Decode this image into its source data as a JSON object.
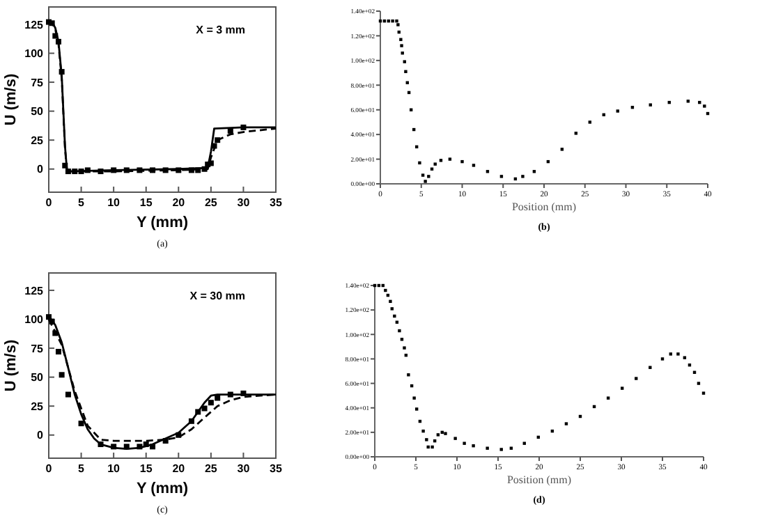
{
  "chart_data": [
    {
      "type": "line",
      "xlabel": "Y (mm)",
      "ylabel": "U (m/s)",
      "annotations": [
        "X = 3 mm",
        "(a)"
      ],
      "xlim": [
        0,
        35
      ],
      "xticks": [
        0,
        5,
        10,
        15,
        20,
        25,
        30,
        35
      ],
      "ylim": [
        -20,
        140
      ],
      "yticks": [
        0,
        25,
        50,
        75,
        100,
        125
      ],
      "grid": false,
      "series": [
        {
          "line_style": "solid",
          "color": "#000000",
          "x": [
            0,
            0.5,
            1,
            1.5,
            2,
            2.5,
            2.8,
            3,
            10,
            20,
            24.5,
            25,
            25.5,
            30,
            35
          ],
          "values": [
            128,
            127,
            122,
            110,
            80,
            20,
            -1,
            -2,
            -1,
            0,
            1,
            15,
            35,
            36,
            36
          ]
        },
        {
          "line_style": "dashed",
          "color": "#000000",
          "x": [
            0,
            0.5,
            1,
            1.5,
            2,
            2.5,
            2.8,
            3,
            10,
            20,
            24.5,
            25,
            26,
            28,
            30,
            35
          ],
          "values": [
            127,
            126,
            121,
            108,
            78,
            18,
            -1,
            -2,
            -2,
            -1,
            0,
            10,
            25,
            30,
            32,
            35
          ]
        },
        {
          "type": "scatter",
          "marker": "square",
          "color": "#000000",
          "x": [
            0,
            0.5,
            1,
            1.5,
            2,
            2.5,
            3,
            4,
            5,
            6,
            8,
            10,
            12,
            14,
            16,
            18,
            20,
            22,
            23,
            24,
            24.5,
            25,
            25.5,
            26,
            28,
            30
          ],
          "values": [
            127,
            126,
            115,
            110,
            84,
            3,
            -2,
            -2,
            -2,
            -1,
            -2,
            -1,
            -1,
            -1,
            -1,
            -1,
            -1,
            -1,
            -1,
            0,
            4,
            5,
            20,
            25,
            33,
            36
          ]
        }
      ]
    },
    {
      "type": "scatter",
      "xlabel": "Position (mm)",
      "annotations": [
        "(b)"
      ],
      "xlim": [
        0,
        40
      ],
      "xticks": [
        0,
        5,
        10,
        15,
        20,
        25,
        30,
        35,
        40
      ],
      "ylim": [
        0,
        140
      ],
      "yticks": [
        {
          "value": 0,
          "label": "0.00e+00"
        },
        {
          "value": 20,
          "label": "2.00e+01"
        },
        {
          "value": 40,
          "label": "4.00e+01"
        },
        {
          "value": 60,
          "label": "6.00e+01"
        },
        {
          "value": 80,
          "label": "8.00e+01"
        },
        {
          "value": 100,
          "label": "1.00e+02"
        },
        {
          "value": 120,
          "label": "1.20e+02"
        },
        {
          "value": 140,
          "label": "1.40e+02"
        }
      ],
      "grid": false,
      "series": [
        {
          "marker": "square",
          "color": "#000000",
          "x": [
            0,
            0.5,
            1,
            1.5,
            2,
            2.16,
            2.28,
            2.5,
            2.6,
            2.7,
            2.96,
            3.1,
            3.3,
            3.5,
            3.76,
            4.1,
            4.44,
            4.8,
            5.2,
            5.5,
            5.9,
            6.3,
            6.7,
            7.4,
            8.5,
            10,
            11.4,
            13.1,
            14.8,
            16.5,
            17.4,
            18.8,
            20.5,
            22.2,
            23.9,
            25.6,
            27.3,
            29,
            30.8,
            33,
            35.3,
            37.6,
            39,
            39.6,
            40
          ],
          "values": [
            132,
            132,
            132,
            132,
            132,
            129,
            123,
            117,
            112,
            106,
            99,
            91,
            82,
            74,
            60,
            44,
            30,
            17,
            7,
            2,
            6,
            12,
            16,
            19,
            20,
            18,
            15,
            10,
            6,
            4,
            6,
            10,
            18,
            28,
            41,
            50,
            56,
            59,
            62,
            64,
            66,
            67,
            66,
            63,
            57
          ]
        }
      ]
    },
    {
      "type": "line",
      "xlabel": "Y (mm)",
      "ylabel": "U (m/s)",
      "annotations": [
        "X = 30 mm",
        "(c)"
      ],
      "xlim": [
        0,
        35
      ],
      "xticks": [
        0,
        5,
        10,
        15,
        20,
        25,
        30,
        35
      ],
      "ylim": [
        -20,
        140
      ],
      "yticks": [
        0,
        25,
        50,
        75,
        100,
        125
      ],
      "grid": false,
      "series": [
        {
          "line_style": "solid",
          "color": "#000000",
          "x": [
            0,
            1,
            2,
            3,
            4,
            5,
            6,
            7,
            8,
            10,
            12,
            14,
            16,
            18,
            20,
            22,
            24,
            25,
            26,
            30,
            35
          ],
          "values": [
            103,
            95,
            80,
            58,
            35,
            18,
            5,
            -3,
            -8,
            -11,
            -12,
            -11,
            -8,
            -3,
            2,
            12,
            28,
            34,
            35,
            35,
            35
          ]
        },
        {
          "line_style": "dashed",
          "color": "#000000",
          "x": [
            0,
            2,
            4,
            6,
            8,
            10,
            15,
            18,
            20,
            22,
            24,
            26,
            28,
            30,
            35
          ],
          "values": [
            100,
            78,
            38,
            8,
            -4,
            -5,
            -5,
            -4,
            -2,
            5,
            15,
            25,
            30,
            33,
            35
          ]
        },
        {
          "type": "scatter",
          "marker": "square",
          "color": "#000000",
          "x": [
            0,
            0.5,
            1,
            1.5,
            2,
            3,
            5,
            8,
            10,
            12,
            14,
            15,
            16,
            18,
            20,
            22,
            23,
            24,
            25,
            26,
            28,
            30
          ],
          "values": [
            102,
            98,
            88,
            72,
            52,
            35,
            10,
            -8,
            -10,
            -10,
            -10,
            -8,
            -10,
            -5,
            0,
            12,
            20,
            23,
            28,
            32,
            35,
            36
          ]
        }
      ]
    },
    {
      "type": "scatter",
      "xlabel": "Position (mm)",
      "annotations": [
        "(d)"
      ],
      "xlim": [
        0,
        40
      ],
      "xticks": [
        0,
        5,
        10,
        15,
        20,
        25,
        30,
        35,
        40
      ],
      "ylim": [
        0,
        140
      ],
      "yticks": [
        {
          "value": 0,
          "label": "0.00e+00"
        },
        {
          "value": 20,
          "label": "2.00e+01"
        },
        {
          "value": 40,
          "label": "4.00e+01"
        },
        {
          "value": 60,
          "label": "6.00e+01"
        },
        {
          "value": 80,
          "label": "8.00e+01"
        },
        {
          "value": 100,
          "label": "1.00e+02"
        },
        {
          "value": 120,
          "label": "1.20e+02"
        },
        {
          "value": 140,
          "label": "1.40e+02"
        }
      ],
      "grid": false,
      "series": [
        {
          "marker": "square",
          "color": "#000000",
          "x": [
            0,
            0.5,
            1,
            1.3,
            1.6,
            1.9,
            2.1,
            2.4,
            2.7,
            3.0,
            3.3,
            3.6,
            3.8,
            4.1,
            4.5,
            4.8,
            5.1,
            5.5,
            5.9,
            6.3,
            6.5,
            7.0,
            7.3,
            7.7,
            8.2,
            8.6,
            9.8,
            10.9,
            12,
            13.7,
            15.4,
            16.6,
            18.2,
            19.9,
            21.6,
            23.3,
            25,
            26.7,
            28.4,
            30.1,
            31.8,
            33.5,
            35,
            36,
            36.9,
            37.7,
            38.3,
            38.9,
            39.4,
            40
          ],
          "values": [
            140,
            140,
            140,
            136,
            132,
            127,
            121,
            115,
            110,
            103,
            96,
            89,
            83,
            67,
            58,
            48,
            39,
            29,
            21,
            14,
            8,
            8,
            13,
            18,
            20,
            19,
            15,
            11,
            9,
            7,
            6,
            7,
            11,
            16,
            21,
            27,
            33,
            41,
            48,
            56,
            64,
            73,
            80,
            84,
            84,
            81,
            75,
            69,
            60,
            52
          ]
        }
      ]
    }
  ]
}
